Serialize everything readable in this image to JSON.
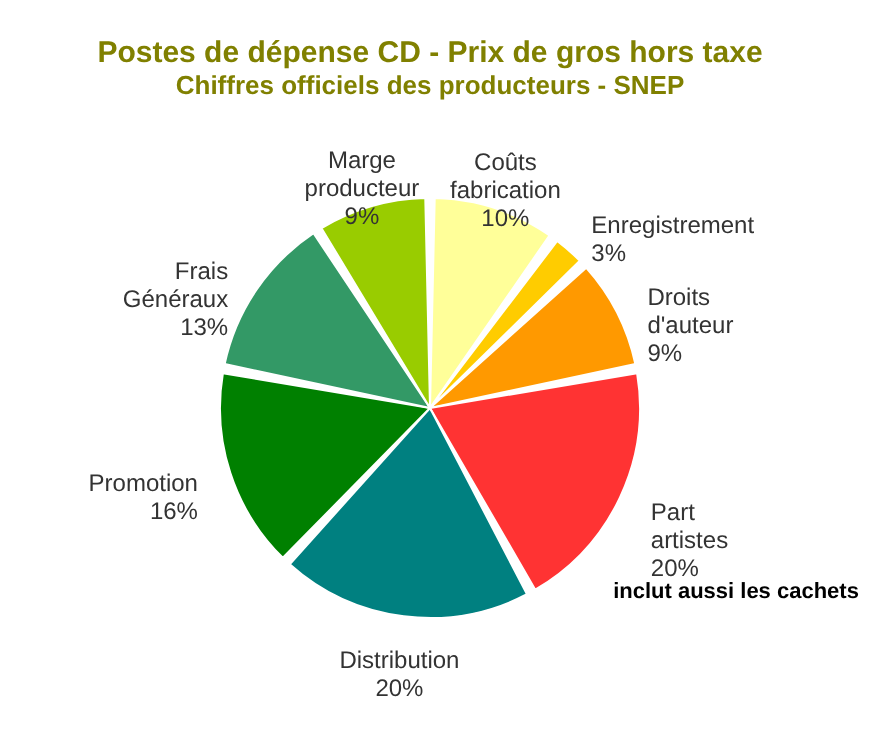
{
  "chart_data": {
    "type": "pie",
    "title": "Postes de dépense CD - Prix de gros hors taxe",
    "subtitle": "Chiffres officiels des producteurs - SNEP",
    "categories": [
      "Coûts fabrication",
      "Enregistrement",
      "Droits d'auteur",
      "Part artistes",
      "Distribution",
      "Promotion",
      "Frais Généraux",
      "Marge producteur"
    ],
    "values": [
      10,
      3,
      9,
      20,
      20,
      16,
      13,
      9
    ],
    "value_labels": [
      "10%",
      "3%",
      "9%",
      "20%",
      "20%",
      "16%",
      "13%",
      "9%"
    ],
    "colors": [
      "#ffff99",
      "#ffcc00",
      "#ff9900",
      "#ff3333",
      "#008080",
      "#008000",
      "#339966",
      "#99cc00"
    ],
    "annotations": [
      "inclut aussi les cachets"
    ]
  }
}
